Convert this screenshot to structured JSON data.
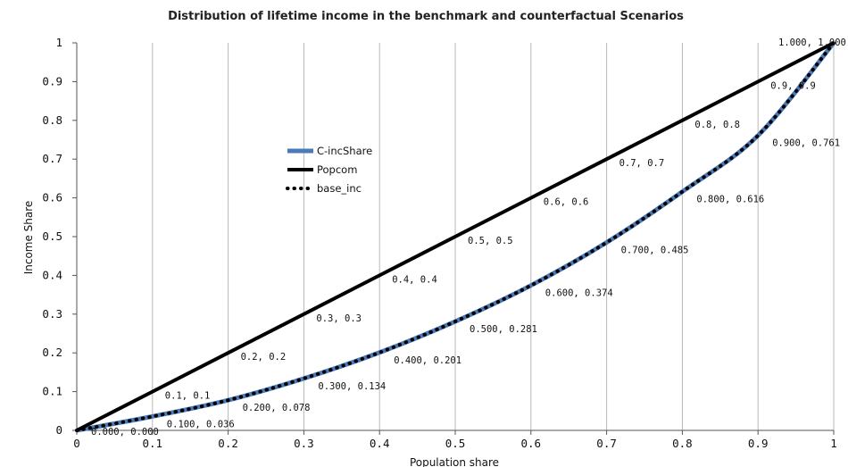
{
  "chart_data": {
    "type": "line",
    "title": "Distribution of lifetime income in the benchmark and counterfactual Scenarios",
    "xlabel": "Population share",
    "ylabel": "Income Share",
    "xlim": [
      0,
      1
    ],
    "ylim": [
      0,
      1
    ],
    "x_ticks": [
      "0",
      "0.1",
      "0.2",
      "0.3",
      "0.4",
      "0.5",
      "0.6",
      "0.7",
      "0.8",
      "0.9",
      "1"
    ],
    "y_ticks": [
      "0",
      "0.1",
      "0.2",
      "0.3",
      "0.4",
      "0.5",
      "0.6",
      "0.7",
      "0.8",
      "0.9",
      "1"
    ],
    "grid": "vertical",
    "legend_position": "center-left",
    "series": [
      {
        "name": "C-incShare",
        "color": "#4a7ab8",
        "style": "solid",
        "x": [
          0,
          0.1,
          0.2,
          0.3,
          0.4,
          0.5,
          0.6,
          0.7,
          0.8,
          0.9,
          1.0
        ],
        "y": [
          0.0,
          0.036,
          0.078,
          0.134,
          0.201,
          0.281,
          0.374,
          0.485,
          0.616,
          0.761,
          1.0
        ]
      },
      {
        "name": "Popcom",
        "color": "#000000",
        "style": "solid",
        "x": [
          0,
          0.1,
          0.2,
          0.3,
          0.4,
          0.5,
          0.6,
          0.7,
          0.8,
          0.9,
          1.0
        ],
        "y": [
          0,
          0.1,
          0.2,
          0.3,
          0.4,
          0.5,
          0.6,
          0.7,
          0.8,
          0.9,
          1.0
        ]
      },
      {
        "name": "base_inc",
        "color": "#000000",
        "style": "dotted",
        "x": [
          0,
          0.1,
          0.2,
          0.3,
          0.4,
          0.5,
          0.6,
          0.7,
          0.8,
          0.9,
          1.0
        ],
        "y": [
          0.0,
          0.036,
          0.078,
          0.134,
          0.201,
          0.281,
          0.374,
          0.485,
          0.616,
          0.761,
          1.0
        ]
      }
    ],
    "data_labels": [
      {
        "series": "Popcom",
        "text": "0.1, 0.1"
      },
      {
        "series": "Popcom",
        "text": "0.2, 0.2"
      },
      {
        "series": "Popcom",
        "text": "0.3, 0.3"
      },
      {
        "series": "Popcom",
        "text": "0.4, 0.4"
      },
      {
        "series": "Popcom",
        "text": "0.5, 0.5"
      },
      {
        "series": "Popcom",
        "text": "0.6, 0.6"
      },
      {
        "series": "Popcom",
        "text": "0.7, 0.7"
      },
      {
        "series": "Popcom",
        "text": "0.8, 0.8"
      },
      {
        "series": "Popcom",
        "text": "0.9, 0.9"
      },
      {
        "series": "base_inc",
        "text": "0.000, 0.000"
      },
      {
        "series": "base_inc",
        "text": "0.100, 0.036"
      },
      {
        "series": "base_inc",
        "text": "0.200, 0.078"
      },
      {
        "series": "base_inc",
        "text": "0.300, 0.134"
      },
      {
        "series": "base_inc",
        "text": "0.400, 0.201"
      },
      {
        "series": "base_inc",
        "text": "0.500, 0.281"
      },
      {
        "series": "base_inc",
        "text": "0.600, 0.374"
      },
      {
        "series": "base_inc",
        "text": "0.700, 0.485"
      },
      {
        "series": "base_inc",
        "text": "0.800, 0.616"
      },
      {
        "series": "base_inc",
        "text": "0.900, 0.761"
      },
      {
        "series": "base_inc",
        "text": "1.000, 1.000"
      }
    ]
  }
}
